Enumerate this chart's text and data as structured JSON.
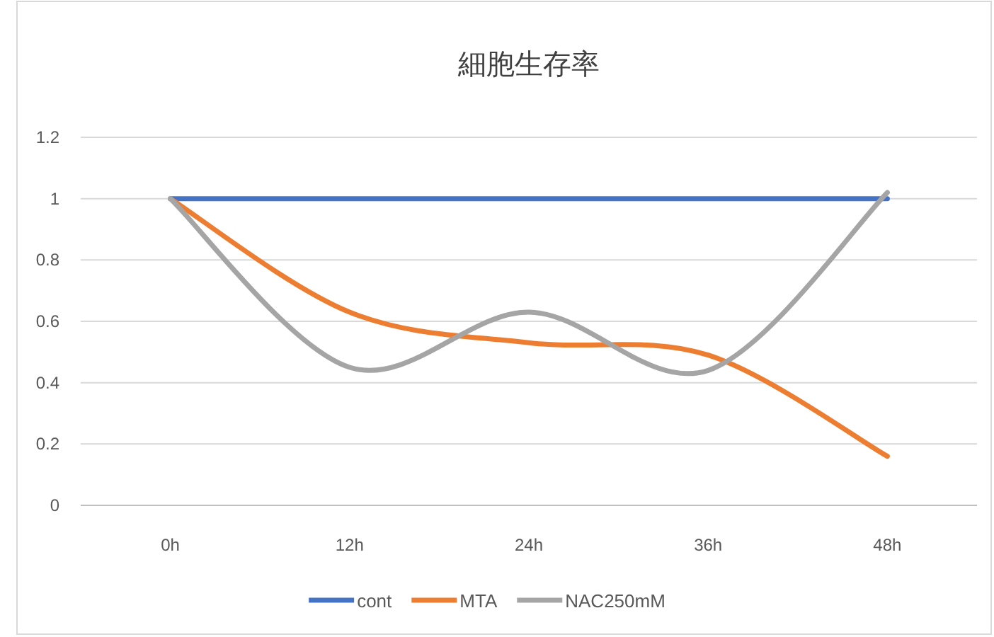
{
  "chart_data": {
    "type": "line",
    "title": "細胞生存率",
    "categories": [
      "0h",
      "12h",
      "24h",
      "36h",
      "48h"
    ],
    "series": [
      {
        "name": "cont",
        "color": "#4472c4",
        "values": [
          1,
          1,
          1,
          1,
          1
        ]
      },
      {
        "name": "MTA",
        "color": "#ed7d31",
        "values": [
          1,
          0.63,
          0.53,
          0.49,
          0.16
        ]
      },
      {
        "name": "NAC250mM",
        "color": "#a5a5a5",
        "values": [
          1,
          0.45,
          0.63,
          0.44,
          1.02
        ]
      }
    ],
    "ylim": [
      0,
      1.2
    ],
    "yticks": [
      0,
      0.2,
      0.4,
      0.6,
      0.8,
      1,
      1.2
    ],
    "grid": "y",
    "legend": "bottom"
  }
}
